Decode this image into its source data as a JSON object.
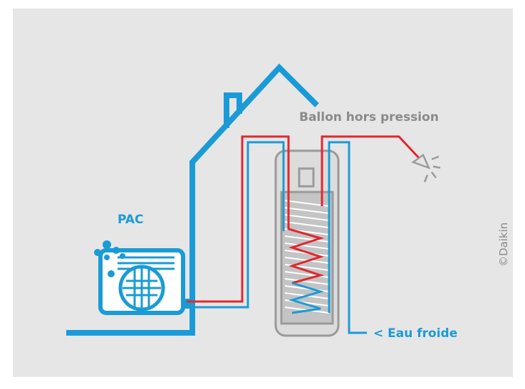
{
  "labels": {
    "tank": "Ballon hors pression",
    "heat_pump": "PAC",
    "cold_water": "< Eau froide",
    "credit": "©Daikin"
  }
}
